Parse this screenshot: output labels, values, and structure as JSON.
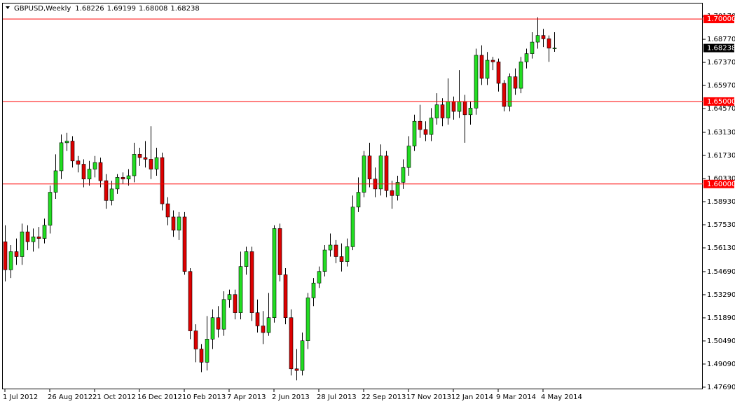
{
  "chart_data": {
    "type": "candlestick",
    "symbol": "GBPUSD,Weekly",
    "categories": [
      "1 Jul 2012",
      null,
      null,
      null,
      null,
      null,
      null,
      null,
      "26 Aug 2012",
      null,
      null,
      null,
      null,
      null,
      null,
      null,
      "21 Oct 2012",
      null,
      null,
      null,
      null,
      null,
      null,
      null,
      "16 Dec 2012",
      null,
      null,
      null,
      null,
      null,
      null,
      null,
      "10 Feb 2013",
      null,
      null,
      null,
      null,
      null,
      null,
      null,
      "7 Apr 2013",
      null,
      null,
      null,
      null,
      null,
      null,
      null,
      "2 Jun 2013",
      null,
      null,
      null,
      null,
      null,
      null,
      null,
      "28 Jul 2013",
      null,
      null,
      null,
      null,
      null,
      null,
      null,
      "22 Sep 2013",
      null,
      null,
      null,
      null,
      null,
      null,
      null,
      "17 Nov 2013",
      null,
      null,
      null,
      null,
      null,
      null,
      null,
      "12 Jan 2014",
      null,
      null,
      null,
      null,
      null,
      null,
      null,
      "9 Mar 2014",
      null,
      null,
      null,
      null,
      null,
      null,
      null,
      "4 May 2014",
      null,
      null
    ],
    "open": [
      1.565,
      1.548,
      1.559,
      1.556,
      1.571,
      1.565,
      1.568,
      1.567,
      1.575,
      1.595,
      1.608,
      1.625,
      1.626,
      1.614,
      1.612,
      1.603,
      1.609,
      1.613,
      1.602,
      1.59,
      1.597,
      1.604,
      1.603,
      1.605,
      1.618,
      1.616,
      1.615,
      1.609,
      1.616,
      1.588,
      1.58,
      1.572,
      1.58,
      1.547,
      1.511,
      1.5,
      1.492,
      1.506,
      1.519,
      1.512,
      1.53,
      1.533,
      1.522,
      1.55,
      1.559,
      1.522,
      1.514,
      1.51,
      1.519,
      1.573,
      1.545,
      1.519,
      1.488,
      1.487,
      1.505,
      1.531,
      1.54,
      1.547,
      1.56,
      1.563,
      1.556,
      1.553,
      1.562,
      1.586,
      1.595,
      1.617,
      1.603,
      1.597,
      1.617,
      1.596,
      1.593,
      1.601,
      1.61,
      1.623,
      1.638,
      1.633,
      1.63,
      1.64,
      1.648,
      1.64,
      1.65,
      1.644,
      1.65,
      1.642,
      1.646,
      1.678,
      1.664,
      1.675,
      1.674,
      1.661,
      1.647,
      1.665,
      1.658,
      1.674,
      1.679,
      1.686,
      1.69,
      1.688,
      1.68226
    ],
    "high": [
      1.575,
      1.563,
      1.567,
      1.576,
      1.575,
      1.573,
      1.574,
      1.579,
      1.599,
      1.618,
      1.63,
      1.631,
      1.629,
      1.617,
      1.615,
      1.614,
      1.617,
      1.616,
      1.606,
      1.602,
      1.606,
      1.607,
      1.609,
      1.625,
      1.622,
      1.626,
      1.635,
      1.622,
      1.619,
      1.592,
      1.584,
      1.583,
      1.583,
      1.549,
      1.515,
      1.503,
      1.52,
      1.524,
      1.526,
      1.535,
      1.536,
      1.536,
      1.559,
      1.562,
      1.562,
      1.53,
      1.523,
      1.534,
      1.575,
      1.576,
      1.549,
      1.524,
      1.5,
      1.51,
      1.534,
      1.543,
      1.55,
      1.563,
      1.57,
      1.566,
      1.564,
      1.567,
      1.593,
      1.604,
      1.62,
      1.625,
      1.61,
      1.624,
      1.62,
      1.602,
      1.605,
      1.615,
      1.629,
      1.642,
      1.648,
      1.638,
      1.646,
      1.655,
      1.652,
      1.664,
      1.653,
      1.669,
      1.654,
      1.65,
      1.682,
      1.684,
      1.68,
      1.677,
      1.676,
      1.663,
      1.667,
      1.67,
      1.677,
      1.682,
      1.692,
      1.701,
      1.694,
      1.69,
      1.69199
    ],
    "low": [
      1.541,
      1.543,
      1.551,
      1.551,
      1.56,
      1.559,
      1.561,
      1.564,
      1.57,
      1.591,
      1.603,
      1.62,
      1.61,
      1.607,
      1.598,
      1.599,
      1.604,
      1.598,
      1.585,
      1.587,
      1.594,
      1.6,
      1.599,
      1.601,
      1.611,
      1.61,
      1.603,
      1.605,
      1.584,
      1.575,
      1.568,
      1.566,
      1.545,
      1.506,
      1.492,
      1.486,
      1.487,
      1.5,
      1.507,
      1.508,
      1.525,
      1.518,
      1.518,
      1.545,
      1.517,
      1.51,
      1.503,
      1.508,
      1.516,
      1.541,
      1.515,
      1.484,
      1.481,
      1.484,
      1.5,
      1.526,
      1.537,
      1.544,
      1.556,
      1.552,
      1.547,
      1.55,
      1.56,
      1.583,
      1.592,
      1.598,
      1.592,
      1.593,
      1.592,
      1.585,
      1.59,
      1.597,
      1.605,
      1.62,
      1.628,
      1.626,
      1.626,
      1.636,
      1.635,
      1.636,
      1.639,
      1.64,
      1.625,
      1.636,
      1.642,
      1.66,
      1.66,
      1.669,
      1.656,
      1.644,
      1.644,
      1.654,
      1.655,
      1.67,
      1.676,
      1.682,
      1.683,
      1.674,
      1.68008
    ],
    "close": [
      1.548,
      1.559,
      1.556,
      1.571,
      1.565,
      1.568,
      1.567,
      1.575,
      1.595,
      1.608,
      1.625,
      1.626,
      1.614,
      1.612,
      1.603,
      1.609,
      1.613,
      1.602,
      1.59,
      1.597,
      1.604,
      1.603,
      1.605,
      1.618,
      1.616,
      1.615,
      1.609,
      1.616,
      1.588,
      1.58,
      1.572,
      1.58,
      1.547,
      1.511,
      1.5,
      1.492,
      1.506,
      1.519,
      1.512,
      1.53,
      1.533,
      1.522,
      1.55,
      1.559,
      1.522,
      1.514,
      1.51,
      1.519,
      1.573,
      1.545,
      1.519,
      1.488,
      1.487,
      1.505,
      1.531,
      1.54,
      1.547,
      1.56,
      1.563,
      1.556,
      1.553,
      1.562,
      1.586,
      1.595,
      1.617,
      1.603,
      1.597,
      1.617,
      1.596,
      1.593,
      1.601,
      1.61,
      1.623,
      1.638,
      1.633,
      1.63,
      1.64,
      1.648,
      1.64,
      1.65,
      1.644,
      1.65,
      1.642,
      1.646,
      1.678,
      1.664,
      1.675,
      1.674,
      1.661,
      1.647,
      1.665,
      1.658,
      1.674,
      1.679,
      1.686,
      1.69,
      1.688,
      1.6823,
      1.68238
    ],
    "up_color": "#22dd22",
    "down_color": "#dd0000",
    "wick_color": "#000000",
    "ylim": [
      1.4756,
      1.7098
    ],
    "yticks": [
      {
        "value": 1.7017,
        "label": "1.70170"
      },
      {
        "value": 1.6877,
        "label": "1.68770"
      },
      {
        "value": 1.6737,
        "label": "1.67370"
      },
      {
        "value": 1.6597,
        "label": "1.65970"
      },
      {
        "value": 1.6457,
        "label": "1.64570"
      },
      {
        "value": 1.6313,
        "label": "1.63130"
      },
      {
        "value": 1.6173,
        "label": "1.61730"
      },
      {
        "value": 1.6033,
        "label": "1.60330"
      },
      {
        "value": 1.5893,
        "label": "1.58930"
      },
      {
        "value": 1.5753,
        "label": "1.57530"
      },
      {
        "value": 1.5613,
        "label": "1.56130"
      },
      {
        "value": 1.5469,
        "label": "1.54690"
      },
      {
        "value": 1.5329,
        "label": "1.53290"
      },
      {
        "value": 1.5189,
        "label": "1.51890"
      },
      {
        "value": 1.5049,
        "label": "1.50490"
      },
      {
        "value": 1.4909,
        "label": "1.49090"
      },
      {
        "value": 1.4769,
        "label": "1.47690"
      }
    ],
    "levels": [
      {
        "value": 1.7,
        "label": "1.70000"
      },
      {
        "value": 1.65,
        "label": "1.65000"
      },
      {
        "value": 1.6,
        "label": "1.60000"
      }
    ],
    "level_color": "#ff0000",
    "last_price": {
      "value": 1.68238,
      "label": "1.68238"
    },
    "grid": false
  }
}
